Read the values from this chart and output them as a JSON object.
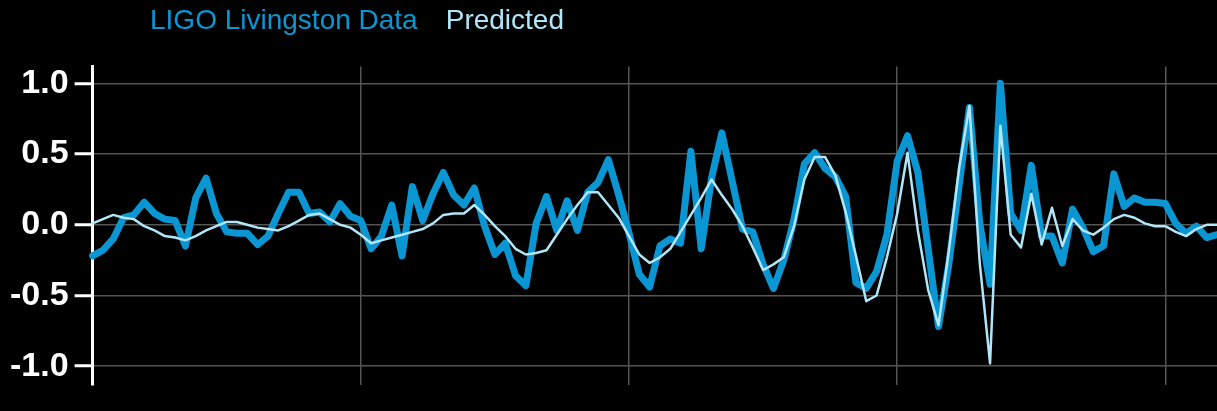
{
  "chart_data": {
    "type": "line",
    "grid": true,
    "marker": "none",
    "line_style": "solid",
    "tick_labels": "y",
    "categories": [
      null,
      null,
      null,
      null,
      null,
      null,
      null,
      null,
      null,
      null,
      null,
      null,
      null,
      null,
      null,
      null,
      null,
      null,
      null,
      null,
      null,
      null,
      null,
      null,
      null,
      null,
      null,
      null,
      null,
      null,
      null,
      null,
      null,
      null,
      null,
      null,
      null,
      null,
      null,
      null,
      null,
      null,
      null,
      null,
      null,
      null,
      null,
      null,
      null,
      null,
      null,
      null,
      null,
      null,
      null,
      null,
      null,
      null,
      null,
      null,
      null,
      null,
      null,
      null,
      null,
      null,
      null,
      null,
      null,
      null,
      null,
      null,
      null,
      null,
      null,
      null,
      null,
      null,
      null,
      null,
      null,
      null,
      null,
      null,
      null,
      null,
      null,
      null,
      null,
      null,
      null,
      null,
      null,
      null,
      null,
      null,
      null,
      null,
      null,
      null,
      null,
      null,
      null,
      null,
      null,
      null,
      null,
      null,
      null,
      null
    ],
    "ylim": [
      -1.13,
      1.12
    ],
    "yticks": [
      {
        "value": 1,
        "label": "1.0"
      },
      {
        "value": 0.5,
        "label": "0.5"
      },
      {
        "value": 0,
        "label": "0.0"
      },
      {
        "value": -0.5,
        "label": "-0.5"
      },
      {
        "value": -1,
        "label": "-1.0"
      }
    ],
    "series": [
      {
        "name": "LIGO Livingston Data",
        "color": "#0a96d2",
        "values": [
          -0.22,
          -0.18,
          -0.1,
          0.05,
          0.07,
          0.16,
          0.08,
          0.04,
          0.03,
          -0.15,
          0.19,
          0.33,
          0.08,
          -0.05,
          -0.06,
          -0.06,
          -0.14,
          -0.08,
          0.08,
          0.23,
          0.23,
          0.08,
          0.09,
          0.02,
          0.15,
          0.06,
          0.03,
          -0.17,
          -0.08,
          0.14,
          -0.22,
          0.27,
          0.03,
          0.22,
          0.37,
          0.21,
          0.14,
          0.26,
          -0.01,
          -0.21,
          -0.13,
          -0.36,
          -0.43,
          0.01,
          0.2,
          -0.04,
          0.17,
          -0.04,
          0.23,
          0.3,
          0.46,
          0.21,
          -0.06,
          -0.35,
          -0.44,
          -0.15,
          -0.1,
          -0.13,
          0.52,
          -0.17,
          0.33,
          0.65,
          0.31,
          -0.03,
          -0.05,
          -0.28,
          -0.45,
          -0.25,
          0.04,
          0.43,
          0.51,
          0.4,
          0.34,
          0.2,
          -0.41,
          -0.45,
          -0.33,
          -0.07,
          0.45,
          0.63,
          0.37,
          -0.17,
          -0.72,
          -0.28,
          0.28,
          0.83,
          0.01,
          -0.42,
          1.0,
          0.08,
          -0.04,
          0.42,
          -0.08,
          -0.08,
          -0.27,
          0.11,
          -0.02,
          -0.19,
          -0.15,
          0.36,
          0.13,
          0.19,
          0.16,
          0.16,
          0.15,
          0.01,
          -0.06,
          -0.01,
          -0.09,
          -0.07
        ]
      },
      {
        "name": "Predicted",
        "color": "#b0e6f7",
        "values": [
          0.01,
          0.04,
          0.07,
          0.05,
          0.04,
          -0.01,
          -0.04,
          -0.08,
          -0.09,
          -0.11,
          -0.08,
          -0.04,
          -0.01,
          0.02,
          0.02,
          0,
          -0.02,
          -0.03,
          -0.04,
          -0.01,
          0.03,
          0.07,
          0.08,
          0.04,
          0,
          -0.02,
          -0.07,
          -0.13,
          -0.11,
          -0.09,
          -0.07,
          -0.05,
          -0.03,
          0.01,
          0.07,
          0.08,
          0.08,
          0.14,
          0.07,
          -0.01,
          -0.08,
          -0.17,
          -0.21,
          -0.2,
          -0.18,
          -0.07,
          0.04,
          0.14,
          0.23,
          0.23,
          0.14,
          0.05,
          -0.08,
          -0.21,
          -0.27,
          -0.23,
          -0.17,
          -0.05,
          0.07,
          0.19,
          0.32,
          0.21,
          0.11,
          -0.01,
          -0.16,
          -0.32,
          -0.28,
          -0.23,
          -0.01,
          0.32,
          0.48,
          0.48,
          0.35,
          0.09,
          -0.22,
          -0.54,
          -0.5,
          -0.23,
          0.08,
          0.51,
          -0.04,
          -0.46,
          -0.71,
          -0.19,
          0.4,
          0.84,
          -0.27,
          -0.98,
          0.7,
          -0.07,
          -0.16,
          0.22,
          -0.14,
          0.12,
          -0.15,
          0.04,
          -0.04,
          -0.07,
          -0.02,
          0.04,
          0.07,
          0.05,
          0.01,
          -0.01,
          -0.01,
          -0.05,
          -0.08,
          -0.03,
          0,
          0
        ]
      }
    ]
  }
}
